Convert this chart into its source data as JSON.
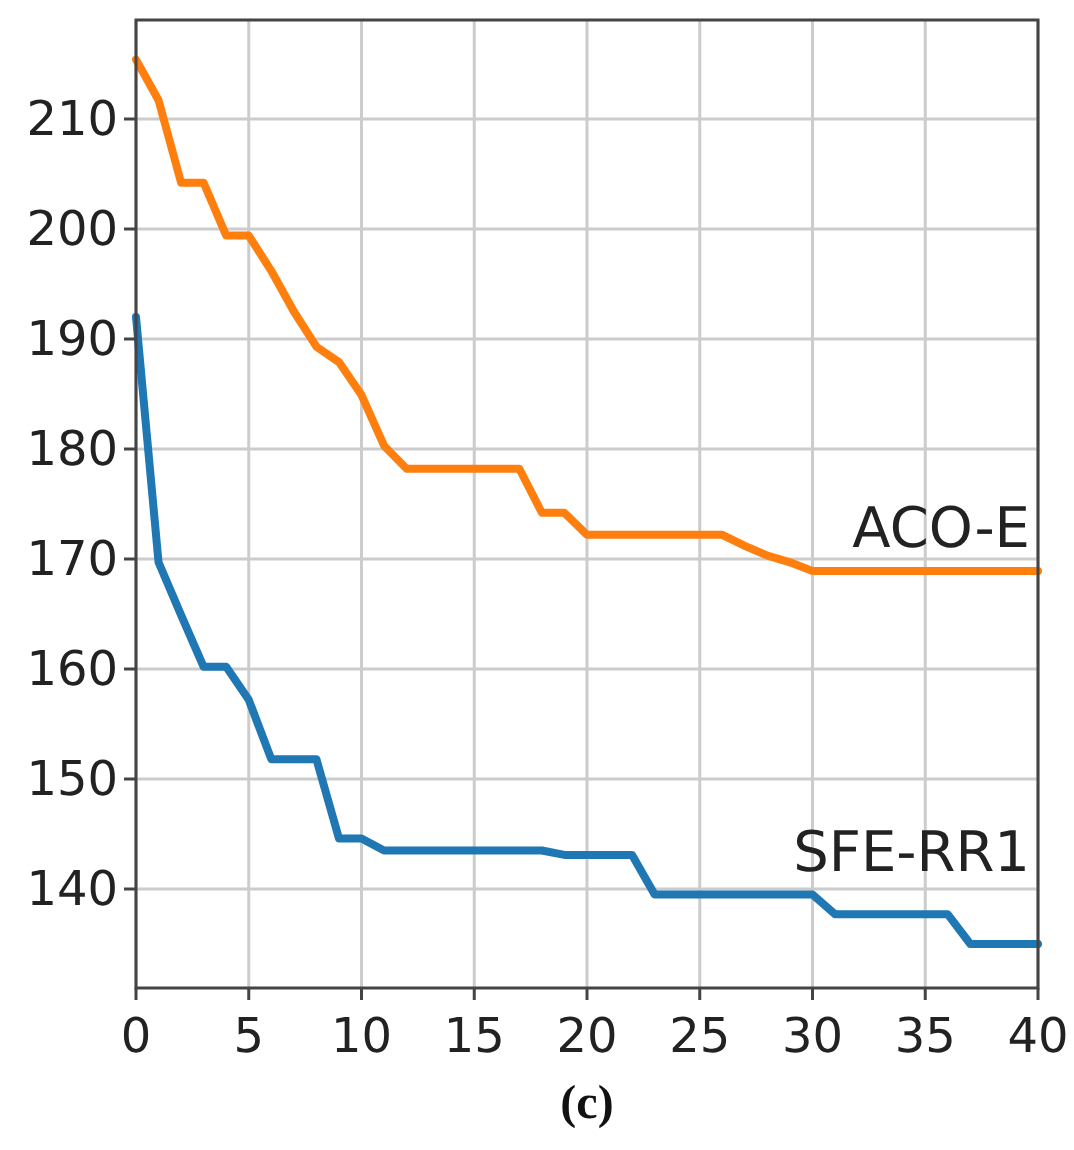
{
  "chart_data": {
    "type": "line",
    "x": [
      0,
      1,
      2,
      3,
      4,
      5,
      6,
      7,
      8,
      9,
      10,
      11,
      12,
      13,
      14,
      15,
      16,
      17,
      18,
      19,
      20,
      21,
      22,
      23,
      24,
      25,
      26,
      27,
      28,
      29,
      30,
      31,
      32,
      33,
      34,
      35,
      36,
      37,
      38,
      39,
      40
    ],
    "series": [
      {
        "name": "ACO-E",
        "color": "#ff7f0e",
        "values": [
          215.4,
          211.7,
          204.2,
          204.2,
          199.4,
          199.4,
          196.2,
          192.5,
          189.3,
          187.9,
          184.9,
          180.3,
          178.2,
          178.2,
          178.2,
          178.2,
          178.2,
          178.2,
          174.2,
          174.2,
          172.2,
          172.2,
          172.2,
          172.2,
          172.2,
          172.2,
          172.2,
          171.2,
          170.3,
          169.7,
          168.9,
          168.9,
          168.9,
          168.9,
          168.9,
          168.9,
          168.9,
          168.9,
          168.9,
          168.9,
          168.9
        ]
      },
      {
        "name": "SFE-RR1",
        "color": "#1f77b4",
        "values": [
          192.0,
          169.7,
          164.9,
          160.2,
          160.2,
          157.2,
          151.8,
          151.8,
          151.8,
          144.6,
          144.6,
          143.5,
          143.5,
          143.5,
          143.5,
          143.5,
          143.5,
          143.5,
          143.5,
          143.1,
          143.1,
          143.1,
          143.1,
          139.5,
          139.5,
          139.5,
          139.5,
          139.5,
          139.5,
          139.5,
          139.5,
          137.7,
          137.7,
          137.7,
          137.7,
          137.7,
          137.7,
          135.0,
          135.0,
          135.0,
          135.0
        ]
      }
    ],
    "xlim": [
      0,
      40
    ],
    "xticks": [
      0,
      5,
      10,
      15,
      20,
      25,
      30,
      35,
      40
    ],
    "ylim": [
      131,
      219
    ],
    "yticks": [
      140,
      150,
      160,
      170,
      180,
      190,
      200,
      210
    ],
    "grid": true,
    "marker": "none",
    "line_style": "solid",
    "annotations": [
      "(c)"
    ]
  }
}
